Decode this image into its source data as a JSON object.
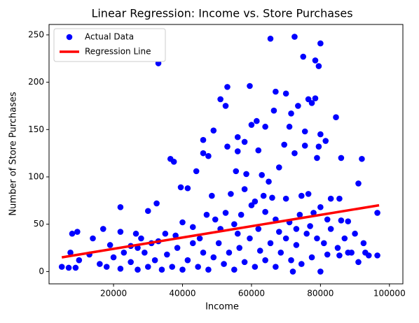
{
  "chart_data": {
    "type": "scatter",
    "title": "Linear Regression: Income vs. Store Purchases",
    "x_label": "Income",
    "y_label": "Number of Store Purchases",
    "xlim": [
      1300,
      103900
    ],
    "ylim": [
      -13,
      261
    ],
    "xticks": [
      20000,
      40000,
      60000,
      80000,
      100000
    ],
    "yticks": [
      0,
      50,
      100,
      150,
      200,
      250
    ],
    "legend": "upper left",
    "series": [
      {
        "name": "Actual Data",
        "type": "scatter",
        "color": "#0000ff",
        "x": [
          33000,
          65500,
          72500,
          80000,
          78500,
          79500,
          75000,
          53000,
          59500,
          51000,
          52500,
          67000,
          70000,
          76500,
          78500,
          77500,
          84500,
          73500,
          61500,
          64000,
          66500,
          71500,
          60000,
          46000,
          49000,
          56000,
          58000,
          53000,
          56000,
          62000,
          75500,
          80000,
          81500,
          79500,
          75500,
          69500,
          71000,
          36500,
          37500,
          44000,
          47500,
          46000,
          55500,
          58500,
          39500,
          41500,
          63000,
          65000,
          68000,
          72500,
          79000,
          86000,
          92000,
          91000,
          48500,
          54000,
          58000,
          61000,
          63500,
          66000,
          70000,
          74500,
          76500,
          80000,
          83000,
          85500,
          22000,
          30000,
          32500,
          17000,
          22000,
          26500,
          8000,
          9500,
          14000,
          19000,
          25000,
          28000,
          35000,
          38000,
          40000,
          43000,
          47000,
          49500,
          52500,
          55000,
          57000,
          60000,
          64000,
          67000,
          71000,
          74000,
          78000,
          82000,
          86000,
          88000,
          90000,
          92500,
          96500,
          96500,
          93000,
          88000,
          85500,
          82000,
          80000,
          72000,
          5000,
          7000,
          9000,
          7500,
          10000,
          13000,
          16000,
          18000,
          20000,
          22000,
          23000,
          25000,
          27000,
          29000,
          30000,
          32000,
          34000,
          35500,
          37000,
          38500,
          40000,
          41500,
          43000,
          44500,
          46000,
          47500,
          49000,
          50500,
          52000,
          53500,
          55000,
          56500,
          58000,
          59500,
          61000,
          62500,
          64000,
          65500,
          67000,
          68500,
          70000,
          71500,
          73000,
          74500,
          76000,
          77500,
          79000,
          81000,
          83000,
          85000,
          87000,
          89000,
          91000,
          94000,
          31000,
          27000,
          33000,
          45000,
          51000,
          56000,
          62000,
          68000,
          73000,
          77000
        ],
        "values": [
          220,
          246,
          248,
          241,
          223,
          217,
          227,
          195,
          196,
          182,
          175,
          190,
          188,
          182,
          183,
          178,
          163,
          175,
          159,
          153,
          170,
          167,
          155,
          139,
          149,
          142,
          137,
          132,
          127,
          128,
          148,
          145,
          138,
          132,
          133,
          134,
          153,
          119,
          116,
          106,
          122,
          125,
          106,
          103,
          89,
          88,
          102,
          95,
          110,
          125,
          120,
          120,
          119,
          93,
          80,
          82,
          87,
          74,
          80,
          78,
          77,
          80,
          82,
          68,
          77,
          77,
          68,
          64,
          72,
          45,
          42,
          40,
          40,
          42,
          35,
          28,
          27,
          35,
          40,
          38,
          52,
          47,
          60,
          55,
          62,
          50,
          60,
          70,
          63,
          55,
          52,
          60,
          62,
          55,
          54,
          53,
          40,
          30,
          62,
          17,
          20,
          20,
          17,
          18,
          0,
          0,
          5,
          4,
          4,
          20,
          12,
          18,
          8,
          5,
          15,
          3,
          20,
          10,
          2,
          20,
          5,
          12,
          2,
          18,
          5,
          25,
          2,
          12,
          30,
          5,
          20,
          2,
          15,
          30,
          8,
          20,
          2,
          25,
          10,
          35,
          5,
          22,
          12,
          30,
          5,
          20,
          35,
          12,
          28,
          8,
          40,
          15,
          35,
          30,
          45,
          25,
          35,
          20,
          10,
          17,
          30,
          25,
          32,
          35,
          45,
          40,
          45,
          42,
          45,
          48
        ]
      },
      {
        "name": "Regression Line",
        "type": "line",
        "color": "#ff0000",
        "x": [
          5000,
          97000
        ],
        "values": [
          15,
          70
        ]
      }
    ]
  }
}
